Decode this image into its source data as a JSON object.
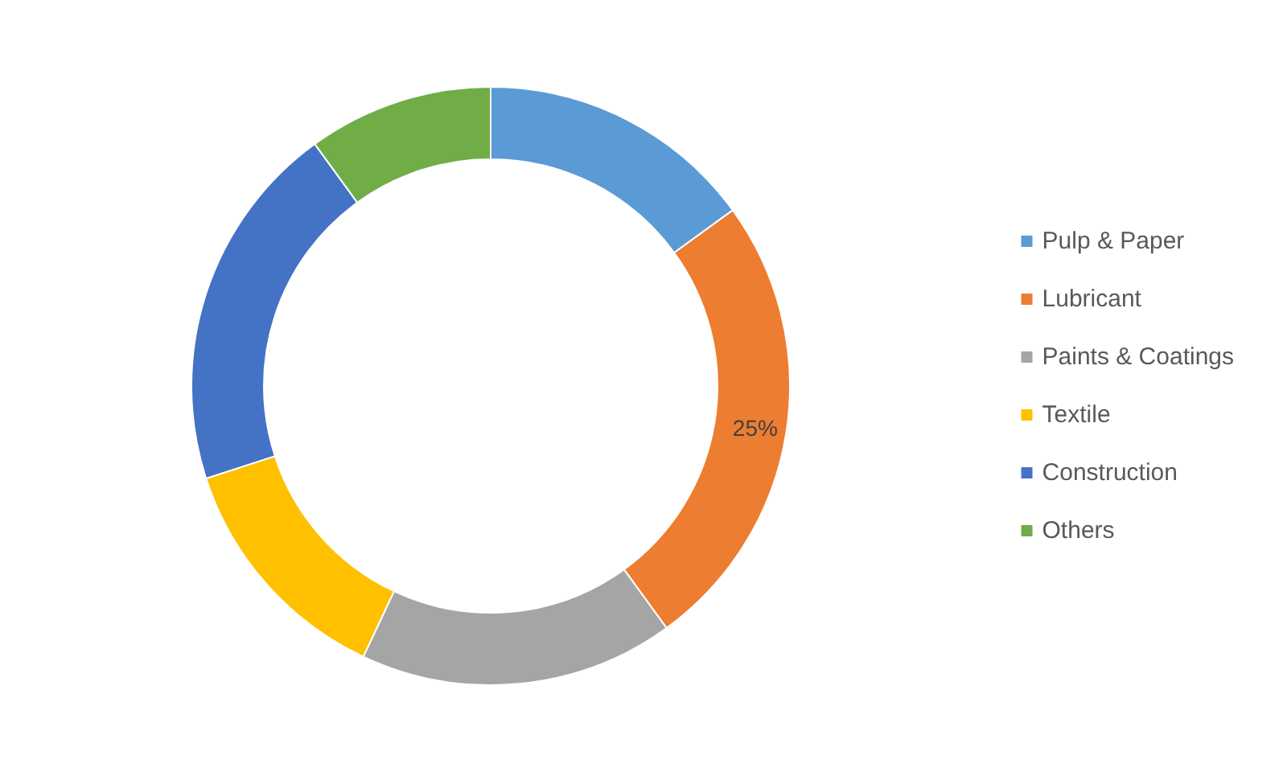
{
  "chart_data": {
    "type": "donut",
    "categories": [
      "Pulp & Paper",
      "Lubricant",
      "Paints & Coatings",
      "Textile",
      "Construction",
      "Others"
    ],
    "values": [
      15,
      25,
      17,
      13,
      20,
      10
    ],
    "colors": [
      "#5b9bd5",
      "#ed7d31",
      "#a5a5a5",
      "#ffc000",
      "#4472c4",
      "#70ad47"
    ],
    "value_labels": [
      null,
      "25%",
      null,
      null,
      null,
      null
    ],
    "legend": "right"
  }
}
